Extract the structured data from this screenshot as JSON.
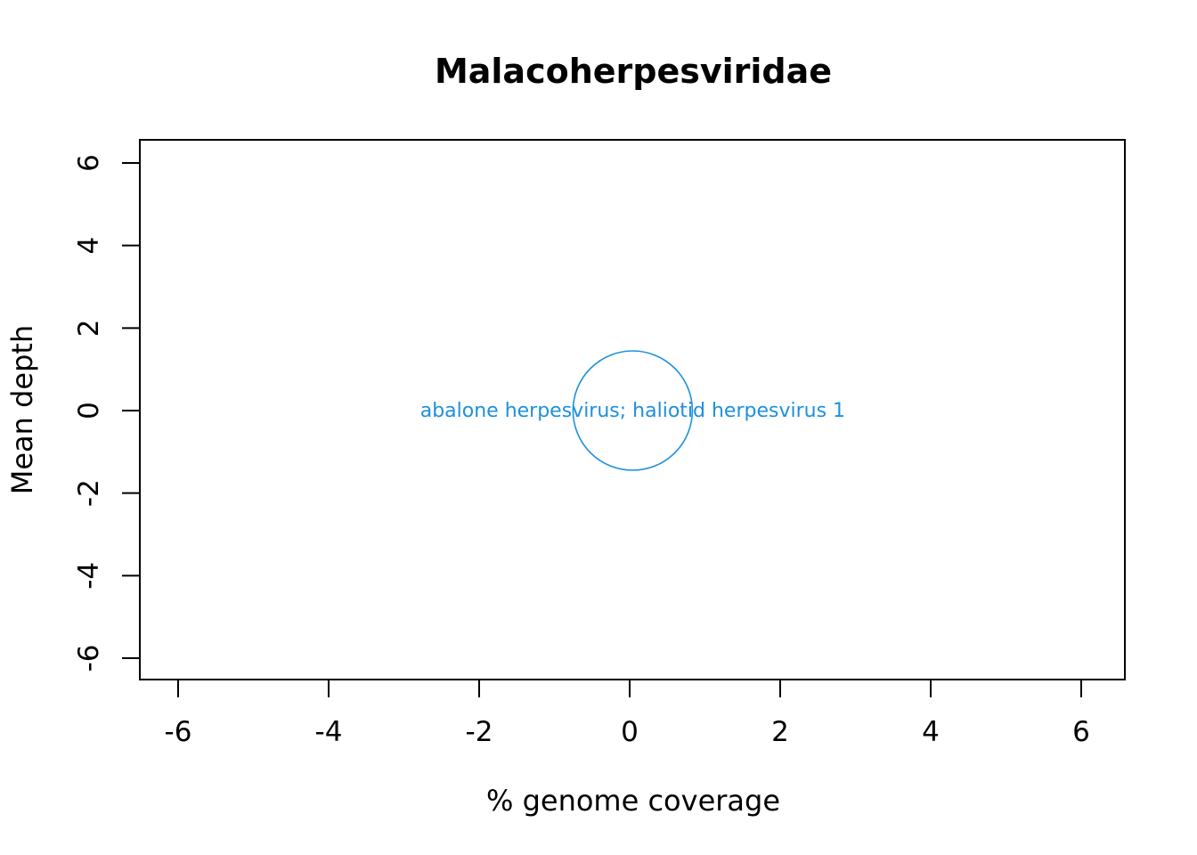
{
  "chart_data": {
    "type": "scatter",
    "title": "Malacoherpesviridae",
    "xlabel": "% genome coverage",
    "ylabel": "Mean depth",
    "xlim": [
      -6.5,
      6.6
    ],
    "ylim": [
      -6.5,
      6.6
    ],
    "xticks": [
      -6,
      -4,
      -2,
      0,
      2,
      4,
      6
    ],
    "yticks": [
      -6,
      -4,
      -2,
      0,
      2,
      4,
      6
    ],
    "xtick_labels": [
      "-6",
      "-4",
      "-2",
      "0",
      "2",
      "4",
      "6"
    ],
    "ytick_labels": [
      "-6",
      "-4",
      "-2",
      "0",
      "2",
      "4",
      "6"
    ],
    "grid": false,
    "series": [
      {
        "points": [
          {
            "x": 0.04,
            "y": 0,
            "label": "abalone herpesvirus; haliotid herpesvirus 1",
            "marker": "open-circle",
            "color": "#1e90dc"
          }
        ]
      }
    ]
  }
}
